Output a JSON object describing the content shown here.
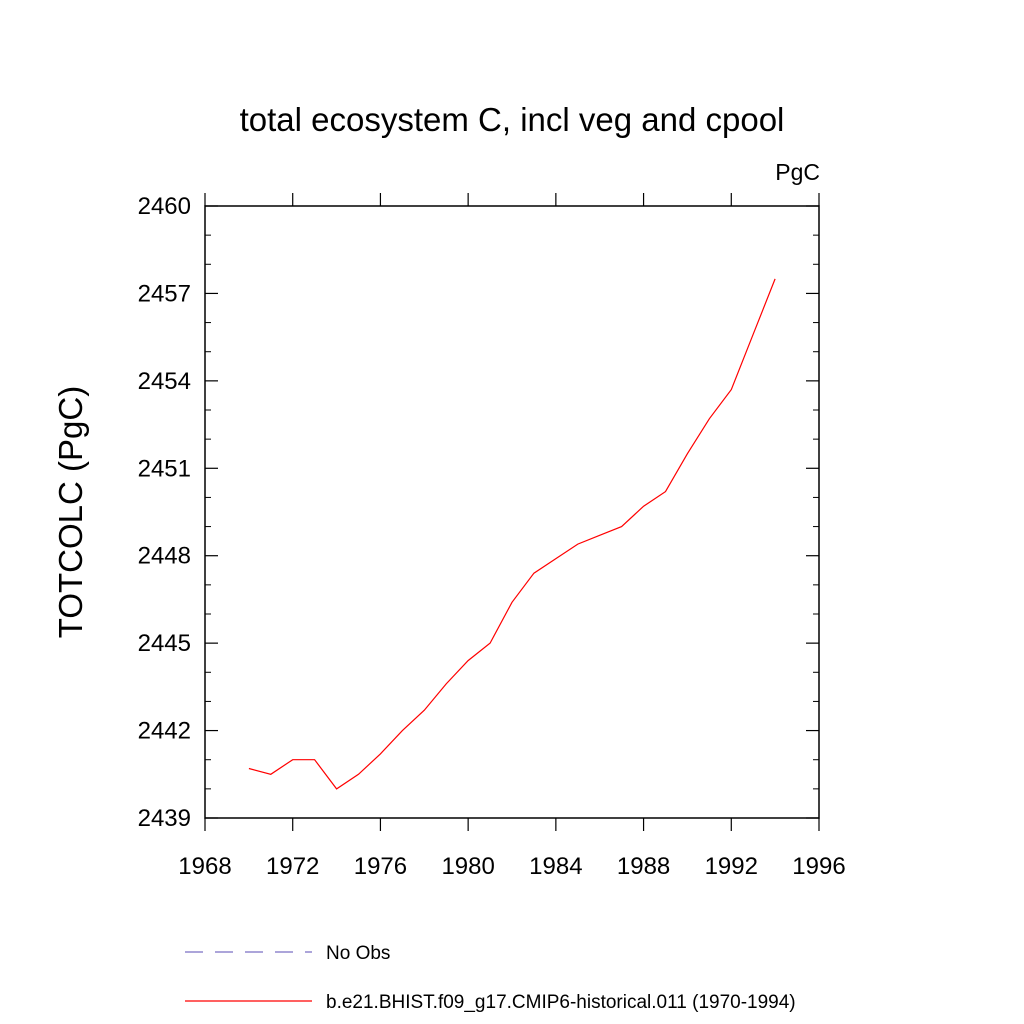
{
  "chart_data": {
    "type": "line",
    "title": "total ecosystem C, incl veg and cpool",
    "units_label": "PgC",
    "xlabel": "",
    "ylabel": "TOTCOLC  (PgC)",
    "xlim": [
      1968,
      1996
    ],
    "ylim": [
      2439,
      2460
    ],
    "x_ticks": [
      1968,
      1972,
      1976,
      1980,
      1984,
      1988,
      1992,
      1996
    ],
    "y_ticks": [
      2439,
      2442,
      2445,
      2448,
      2451,
      2454,
      2457,
      2460
    ],
    "grid": false,
    "legend_position": "bottom",
    "series": [
      {
        "name": "No Obs",
        "color": "#7b6fc4",
        "dash": "dashed",
        "x": [],
        "values": []
      },
      {
        "name": "b.e21.BHIST.f09_g17.CMIP6-historical.011 (1970-1994)",
        "color": "#ff0000",
        "dash": "solid",
        "x": [
          1970,
          1971,
          1972,
          1973,
          1974,
          1975,
          1976,
          1977,
          1978,
          1979,
          1980,
          1981,
          1982,
          1983,
          1984,
          1985,
          1986,
          1987,
          1988,
          1989,
          1990,
          1991,
          1992,
          1993,
          1994
        ],
        "values": [
          2440.7,
          2440.5,
          2441.0,
          2441.0,
          2440.0,
          2440.5,
          2441.2,
          2442.0,
          2442.7,
          2443.6,
          2444.4,
          2445.0,
          2446.4,
          2447.4,
          2447.9,
          2448.4,
          2448.7,
          2449.0,
          2449.7,
          2450.2,
          2451.5,
          2452.7,
          2453.7,
          2455.6,
          2457.5
        ]
      }
    ]
  }
}
